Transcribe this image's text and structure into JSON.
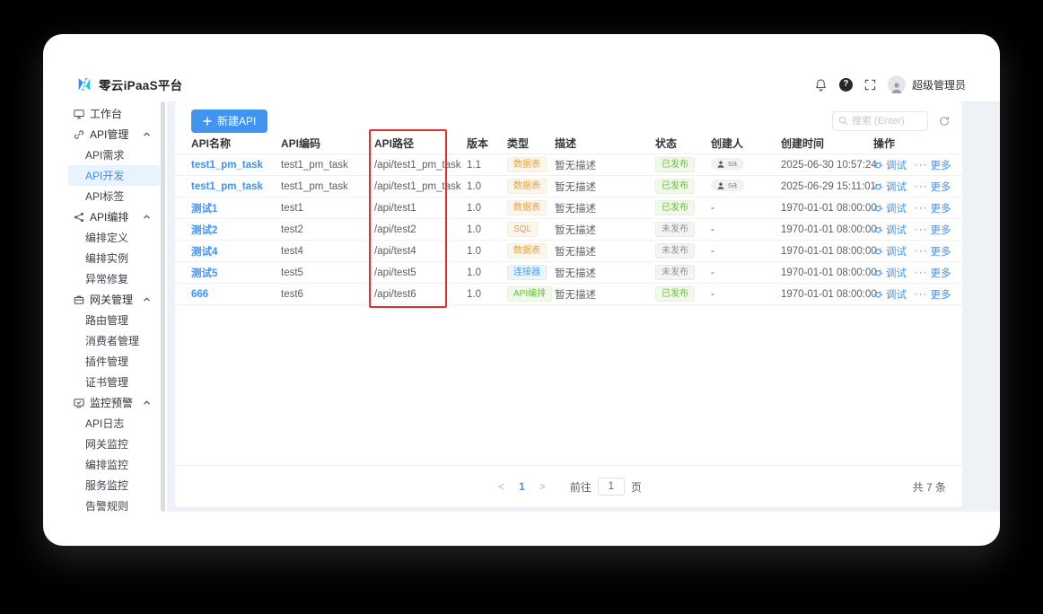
{
  "header": {
    "logo_text": "零云iPaaS平台",
    "help_glyph": "?",
    "user_name": "超级管理员"
  },
  "sidebar": {
    "items": [
      {
        "label": "工作台",
        "icon": "monitor-icon",
        "level": 1
      },
      {
        "label": "API管理",
        "icon": "link-icon",
        "level": 1,
        "chevron": true
      },
      {
        "label": "API需求",
        "level": 2
      },
      {
        "label": "API开发",
        "level": 2,
        "active": true
      },
      {
        "label": "API标签",
        "level": 2
      },
      {
        "label": "API编排",
        "icon": "share-icon",
        "level": 1,
        "chevron": true
      },
      {
        "label": "编排定义",
        "level": 2
      },
      {
        "label": "编排实例",
        "level": 2
      },
      {
        "label": "异常修复",
        "level": 2
      },
      {
        "label": "网关管理",
        "icon": "gateway-icon",
        "level": 1,
        "chevron": true
      },
      {
        "label": "路由管理",
        "level": 2
      },
      {
        "label": "消费者管理",
        "level": 2
      },
      {
        "label": "插件管理",
        "level": 2
      },
      {
        "label": "证书管理",
        "level": 2
      },
      {
        "label": "监控预警",
        "icon": "monitor-alert-icon",
        "level": 1,
        "chevron": true
      },
      {
        "label": "API日志",
        "level": 2
      },
      {
        "label": "网关监控",
        "level": 2
      },
      {
        "label": "编排监控",
        "level": 2
      },
      {
        "label": "服务监控",
        "level": 2
      },
      {
        "label": "告警规则",
        "level": 2
      }
    ]
  },
  "toolbar": {
    "new_api_label": "新建API",
    "search_placeholder": "搜索 (Enter)"
  },
  "table": {
    "columns": [
      "API名称",
      "API编码",
      "API路径",
      "版本",
      "类型",
      "描述",
      "状态",
      "创建人",
      "创建时间",
      "操作"
    ],
    "ops": {
      "debug_label": "调试",
      "more_dots": "···",
      "more_label": "更多"
    },
    "rows": [
      {
        "name": "test1_pm_task",
        "code": "test1_pm_task",
        "path": "/api/test1_pm_task",
        "version": "1.1",
        "type": "数据表",
        "type_color": "orange",
        "desc": "暂无描述",
        "status": "已发布",
        "status_color": "green",
        "creator": "sa",
        "creator_avatar": true,
        "created": "2025-06-30 10:57:24"
      },
      {
        "name": "test1_pm_task",
        "code": "test1_pm_task",
        "path": "/api/test1_pm_task",
        "version": "1.0",
        "type": "数据表",
        "type_color": "orange",
        "desc": "暂无描述",
        "status": "已发布",
        "status_color": "green",
        "creator": "sa",
        "creator_avatar": true,
        "created": "2025-06-29 15:11:01"
      },
      {
        "name": "测试1",
        "code": "test1",
        "path": "/api/test1",
        "version": "1.0",
        "type": "数据表",
        "type_color": "orange",
        "desc": "暂无描述",
        "status": "已发布",
        "status_color": "green",
        "creator": "-",
        "creator_avatar": false,
        "created": "1970-01-01 08:00:00"
      },
      {
        "name": "测试2",
        "code": "test2",
        "path": "/api/test2",
        "version": "1.0",
        "type": "SQL",
        "type_color": "orange",
        "desc": "暂无描述",
        "status": "未发布",
        "status_color": "gray",
        "creator": "-",
        "creator_avatar": false,
        "created": "1970-01-01 08:00:00"
      },
      {
        "name": "测试4",
        "code": "test4",
        "path": "/api/test4",
        "version": "1.0",
        "type": "数据表",
        "type_color": "orange",
        "desc": "暂无描述",
        "status": "未发布",
        "status_color": "gray",
        "creator": "-",
        "creator_avatar": false,
        "created": "1970-01-01 08:00:00"
      },
      {
        "name": "测试5",
        "code": "test5",
        "path": "/api/test5",
        "version": "1.0",
        "type": "连接器",
        "type_color": "blue",
        "desc": "暂无描述",
        "status": "未发布",
        "status_color": "gray",
        "creator": "-",
        "creator_avatar": false,
        "created": "1970-01-01 08:00:00"
      },
      {
        "name": "666",
        "code": "test6",
        "path": "/api/test6",
        "version": "1.0",
        "type": "API编排",
        "type_color": "green",
        "desc": "暂无描述",
        "status": "已发布",
        "status_color": "green",
        "creator": "-",
        "creator_avatar": false,
        "created": "1970-01-01 08:00:00"
      }
    ]
  },
  "pagination": {
    "prev": "<",
    "page": "1",
    "next": ">",
    "goto_label": "前往",
    "goto_value": "1",
    "page_unit": "页",
    "total_label": "共 7 条"
  },
  "colors": {
    "primary_button": "#4394F0",
    "link_blue": "#4093F7",
    "red_highlight_box": "#EE2B2B",
    "sidebar_active_bg": "#E9F3FE",
    "content_bg": "#EEF1F6",
    "badge_orange": "#E6A23C",
    "badge_blue": "#409EFF",
    "badge_green": "#67C23A",
    "badge_gray": "#909399"
  }
}
